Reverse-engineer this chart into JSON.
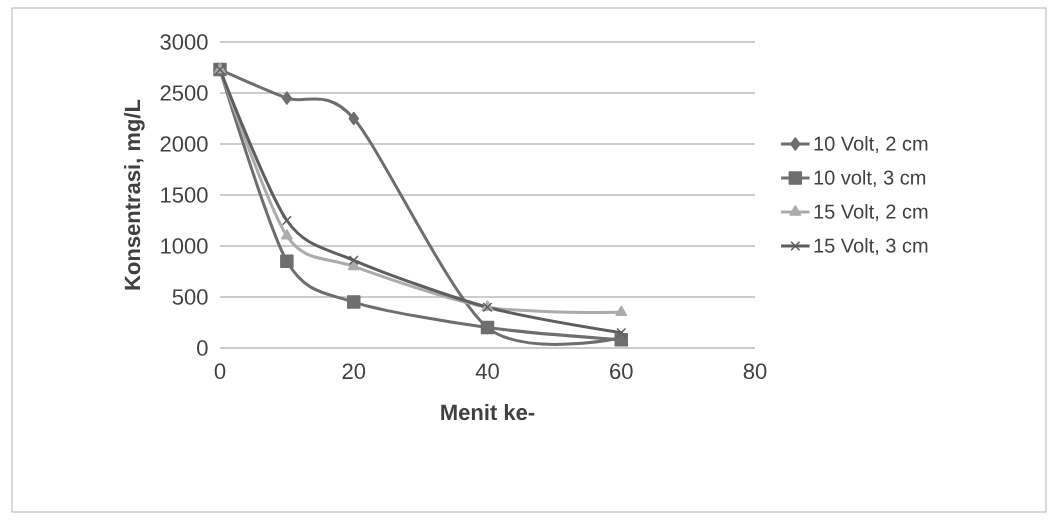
{
  "chart_data": {
    "type": "line",
    "xlabel": "Menit ke-",
    "ylabel": "Konsentrasi, mg/L",
    "x": [
      0,
      10,
      20,
      40,
      60
    ],
    "series": [
      {
        "name": "10 Volt, 2 cm",
        "color": "#6e6e6e",
        "marker": "diamond",
        "values": [
          2730,
          2450,
          2250,
          200,
          100
        ]
      },
      {
        "name": "10 volt, 3 cm",
        "color": "#6e6e6e",
        "marker": "square",
        "values": [
          2730,
          850,
          450,
          200,
          80
        ]
      },
      {
        "name": "15 Volt, 2 cm",
        "color": "#ababab",
        "marker": "triangle",
        "values": [
          2730,
          1100,
          800,
          400,
          350
        ]
      },
      {
        "name": "15 Volt, 3 cm",
        "color": "#5e5e5e",
        "marker": "cross",
        "values": [
          2730,
          1250,
          860,
          400,
          150
        ]
      }
    ],
    "xlim": [
      0,
      80
    ],
    "xticks": [
      0,
      20,
      40,
      60,
      80
    ],
    "ylim": [
      0,
      3000
    ],
    "yticks": [
      0,
      500,
      1000,
      1500,
      2000,
      2500,
      3000
    ],
    "grid": "y",
    "legend": "right",
    "line_style": "solid"
  }
}
